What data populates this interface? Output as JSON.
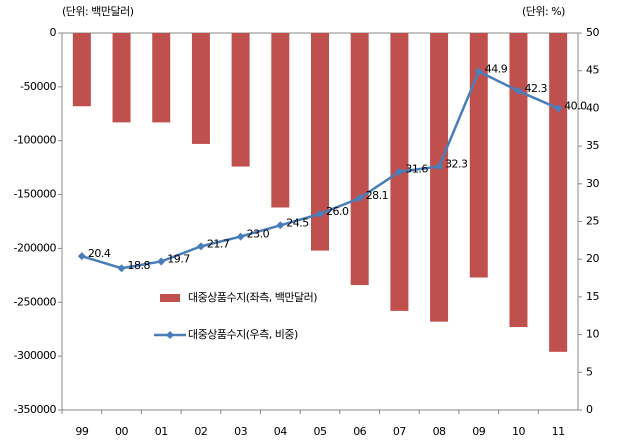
{
  "chart_data": {
    "type": "bar",
    "y_unit_label": "(단위: 백만달러)",
    "y2_unit_label": "(단위: %)",
    "categories": [
      "99",
      "00",
      "01",
      "02",
      "03",
      "04",
      "05",
      "06",
      "07",
      "08",
      "09",
      "10",
      "11"
    ],
    "series": [
      {
        "name": "대중상품수지(좌측, 백만달러)",
        "type": "bar",
        "color": "#c0504d",
        "values": [
          -68000,
          -83000,
          -83000,
          -103000,
          -124000,
          -162000,
          -202000,
          -234000,
          -258000,
          -268000,
          -227000,
          -273000,
          -296000
        ]
      },
      {
        "name": "대중상품수지(우측, 비중)",
        "type": "line",
        "axis": "y2",
        "color": "#4a7ebb",
        "values": [
          20.4,
          18.8,
          19.7,
          21.7,
          23.0,
          24.5,
          26.0,
          28.1,
          31.6,
          32.3,
          44.9,
          42.3,
          40.0
        ],
        "value_labels": [
          "20.4",
          "18.8",
          "19.7",
          "21.7",
          "23.0",
          "24.5",
          "26.0",
          "28.1",
          "31.6",
          "32.3",
          "44.9",
          "42.3",
          "40.0"
        ]
      }
    ],
    "ylim": [
      -350000,
      0
    ],
    "yticks": [
      0,
      -50000,
      -100000,
      -150000,
      -200000,
      -250000,
      -300000,
      -350000
    ],
    "y2lim": [
      0,
      50
    ],
    "y2ticks": [
      0,
      5,
      10,
      15,
      20,
      25,
      30,
      35,
      40,
      45,
      50
    ],
    "grid": false
  }
}
